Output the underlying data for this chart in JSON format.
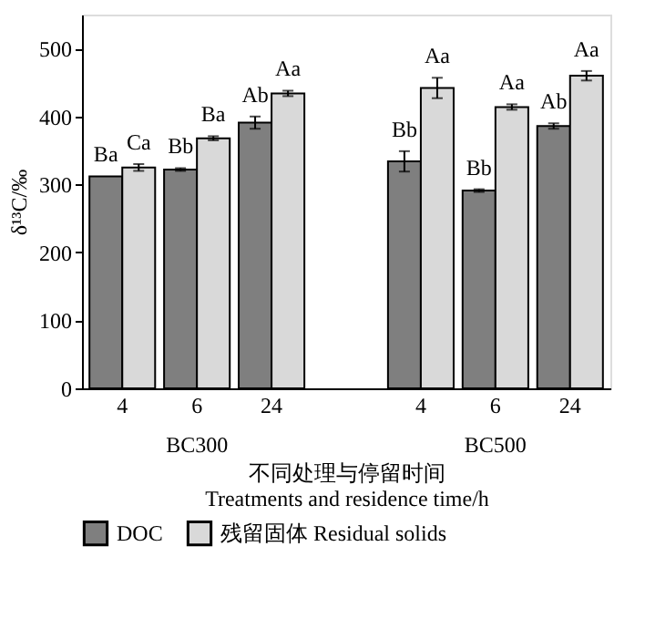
{
  "chart_data": {
    "type": "bar",
    "ylabel": "δ¹³C/‰",
    "xlabel": "不同处理与停留时间\nTreatments and residence time/h",
    "categories": [
      "4",
      "6",
      "24",
      null,
      "4",
      "6",
      "24"
    ],
    "series": [
      {
        "name": "DOC",
        "color": "#7f7f7f",
        "values": [
          312,
          322,
          391,
          null,
          334,
          291,
          386
        ],
        "errors": [
          null,
          2,
          9,
          null,
          15,
          2,
          4
        ],
        "value_labels": [
          "Ba",
          "Bb",
          "Ab",
          null,
          "Bb",
          "Bb",
          "Ab"
        ]
      },
      {
        "name": "残留固体 Residual solids",
        "color": "#d9d9d9",
        "values": [
          325,
          368,
          434,
          null,
          442,
          414,
          460
        ],
        "errors": [
          5,
          3,
          4,
          null,
          15,
          4,
          7
        ],
        "value_labels": [
          "Ca",
          "Ba",
          "Aa",
          null,
          "Aa",
          "Aa",
          "Aa"
        ]
      }
    ],
    "annotations": [
      "BC300",
      "BC500"
    ],
    "ylim": [
      0,
      550
    ],
    "yticks": [
      0,
      100,
      200,
      300,
      400,
      500
    ],
    "grid": false,
    "legend": "bottom"
  }
}
